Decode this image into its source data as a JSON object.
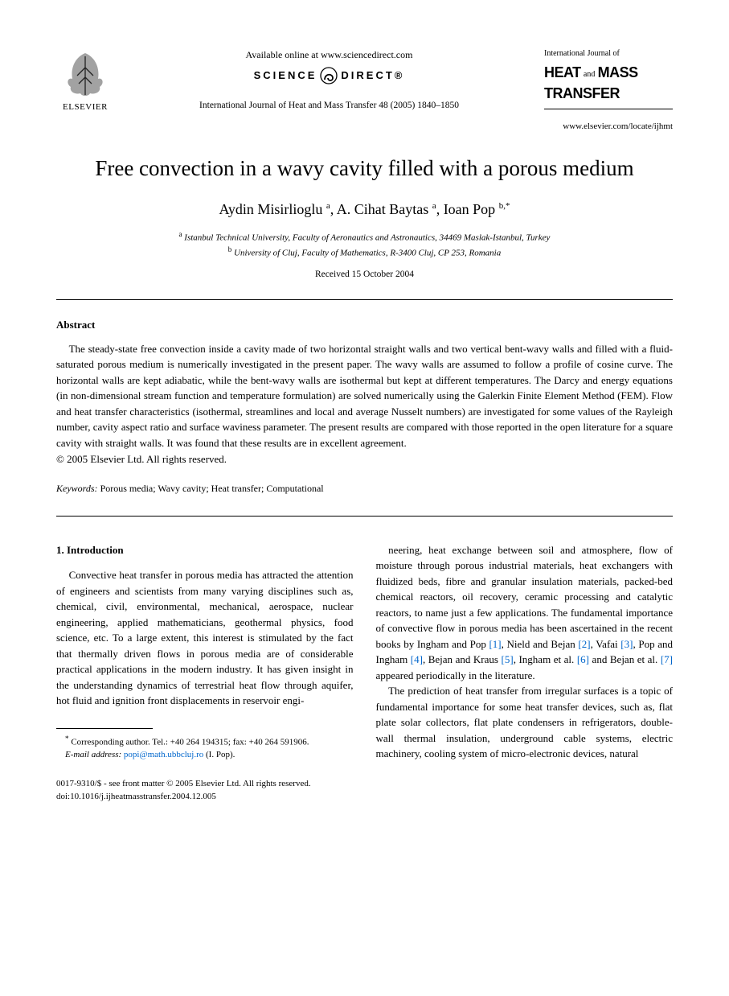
{
  "header": {
    "elsevier_label": "ELSEVIER",
    "available_online": "Available online at www.sciencedirect.com",
    "sciencedirect_left": "SCIENCE",
    "sciencedirect_right": "DIRECT®",
    "journal_citation": "International Journal of Heat and Mass Transfer 48 (2005) 1840–1850",
    "ij_label": "International Journal of",
    "hmt_heat": "HEAT",
    "hmt_and": "and",
    "hmt_mass": "MASS",
    "hmt_transfer": "TRANSFER",
    "locate_url": "www.elsevier.com/locate/ijhmt"
  },
  "title": "Free convection in a wavy cavity filled with a porous medium",
  "authors_html": "Aydin Misirlioglu <sup>a</sup>, A. Cihat Baytas <sup>a</sup>, Ioan Pop <sup>b,*</sup>",
  "authors": [
    {
      "name": "Aydin Misirlioglu",
      "aff": "a"
    },
    {
      "name": "A. Cihat Baytas",
      "aff": "a"
    },
    {
      "name": "Ioan Pop",
      "aff": "b,*"
    }
  ],
  "affiliations": [
    {
      "marker": "a",
      "text": "Istanbul Technical University, Faculty of Aeronautics and Astronautics, 34469 Maslak-Istanbul, Turkey"
    },
    {
      "marker": "b",
      "text": "University of Cluj, Faculty of Mathematics, R-3400 Cluj, CP 253, Romania"
    }
  ],
  "received": "Received 15 October 2004",
  "abstract": {
    "heading": "Abstract",
    "body": "The steady-state free convection inside a cavity made of two horizontal straight walls and two vertical bent-wavy walls and filled with a fluid-saturated porous medium is numerically investigated in the present paper. The wavy walls are assumed to follow a profile of cosine curve. The horizontal walls are kept adiabatic, while the bent-wavy walls are isothermal but kept at different temperatures. The Darcy and energy equations (in non-dimensional stream function and temperature formulation) are solved numerically using the Galerkin Finite Element Method (FEM). Flow and heat transfer characteristics (isothermal, streamlines and local and average Nusselt numbers) are investigated for some values of the Rayleigh number, cavity aspect ratio and surface waviness parameter. The present results are compared with those reported in the open literature for a square cavity with straight walls. It was found that these results are in excellent agreement.",
    "copyright": "© 2005 Elsevier Ltd. All rights reserved."
  },
  "keywords": {
    "label": "Keywords:",
    "text": "Porous media; Wavy cavity; Heat transfer; Computational"
  },
  "section1": {
    "heading": "1. Introduction",
    "col1": "Convective heat transfer in porous media has attracted the attention of engineers and scientists from many varying disciplines such as, chemical, civil, environmental, mechanical, aerospace, nuclear engineering, applied mathematicians, geothermal physics, food science, etc. To a large extent, this interest is stimulated by the fact that thermally driven flows in porous media are of considerable practical applications in the modern industry. It has given insight in the understanding dynamics of terrestrial heat flow through aquifer, hot fluid and ignition front displacements in reservoir engi-",
    "col2_a": "neering, heat exchange between soil and atmosphere, flow of moisture through porous industrial materials, heat exchangers with fluidized beds, fibre and granular insulation materials, packed-bed chemical reactors, oil recovery, ceramic processing and catalytic reactors, to name just a few applications. The fundamental importance of convective flow in porous media has been ascertained in the recent books by Ingham and Pop ",
    "refs": [
      "[1]",
      "[2]",
      "[3]",
      "[4]",
      "[5]",
      "[6]",
      "[7]"
    ],
    "col2_b": ", Nield and Bejan ",
    "col2_c": ", Vafai ",
    "col2_d": ", Pop and Ingham ",
    "col2_e": ", Bejan and Kraus ",
    "col2_f": ", Ingham et al. ",
    "col2_g": " and Bejan et al. ",
    "col2_h": " appeared periodically in the literature.",
    "col2_p2": "The prediction of heat transfer from irregular surfaces is a topic of fundamental importance for some heat transfer devices, such as, flat plate solar collectors, flat plate condensers in refrigerators, double-wall thermal insulation, underground cable systems, electric machinery, cooling system of micro-electronic devices, natural"
  },
  "footnote": {
    "corr": "Corresponding author. Tel.: +40 264 194315; fax: +40 264 591906.",
    "email_label": "E-mail address:",
    "email": "popi@math.ubbcluj.ro",
    "email_tail": "(I. Pop)."
  },
  "bottom": {
    "line1": "0017-9310/$ - see front matter © 2005 Elsevier Ltd. All rights reserved.",
    "line2": "doi:10.1016/j.ijheatmasstransfer.2004.12.005"
  },
  "colors": {
    "text": "#000000",
    "link": "#0066cc",
    "background": "#ffffff"
  }
}
